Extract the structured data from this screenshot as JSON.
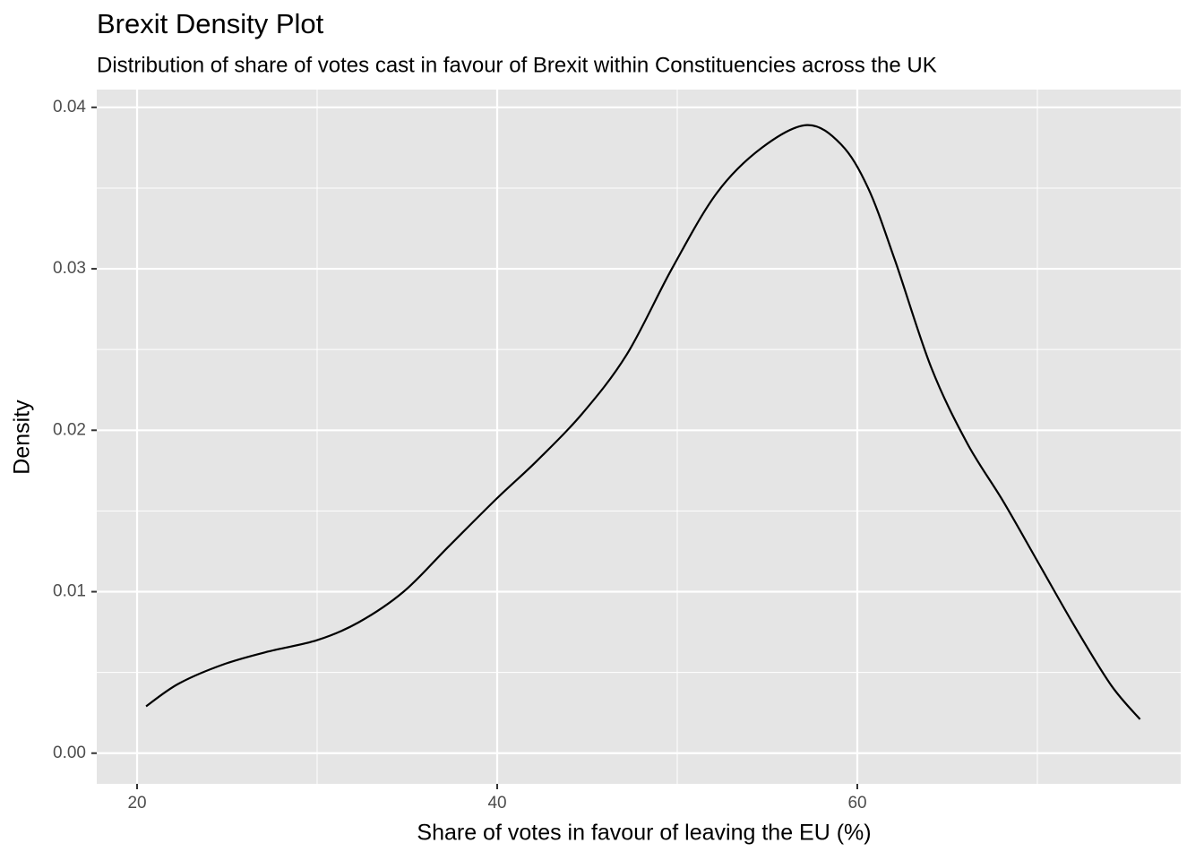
{
  "chart_data": {
    "type": "line",
    "title": "Brexit Density Plot",
    "subtitle": "Distribution of share of votes cast in favour of Brexit within Constituencies across the UK",
    "x_label": "Share of votes in favour of leaving the EU (%)",
    "y_label": "Density",
    "x": [
      20.5,
      22.3,
      24.8,
      27.3,
      30,
      32.3,
      34.8,
      37.3,
      40,
      42.2,
      44.7,
      47.2,
      49.7,
      52.2,
      54.7,
      57.2,
      59.1,
      60.6,
      62.1,
      64.1,
      66.1,
      68.1,
      70.1,
      72.1,
      74.1,
      75.7
    ],
    "series": [
      {
        "color": "#000000",
        "values": [
          0.0029,
          0.0043,
          0.0055,
          0.0063,
          0.007,
          0.0081,
          0.01,
          0.0128,
          0.0158,
          0.0181,
          0.021,
          0.0247,
          0.03,
          0.0347,
          0.0375,
          0.0389,
          0.0377,
          0.035,
          0.0305,
          0.0239,
          0.0192,
          0.0156,
          0.0117,
          0.0078,
          0.0042,
          0.0021
        ]
      }
    ],
    "xlim": [
      17.76,
      77.96
    ],
    "ylim": [
      -0.0019,
      0.0411
    ],
    "xticks": [
      20,
      40,
      60
    ],
    "yticks": [
      {
        "value": 0,
        "label": "0.00"
      },
      {
        "value": 0.01,
        "label": "0.01"
      },
      {
        "value": 0.02,
        "label": "0.02"
      },
      {
        "value": 0.03,
        "label": "0.03"
      },
      {
        "value": 0.04,
        "label": "0.04"
      }
    ],
    "x_minor_ticks": [
      30,
      50,
      70
    ],
    "y_minor_ticks": [
      0.005,
      0.015,
      0.025,
      0.035
    ],
    "grid": true,
    "panel_color": "#e5e5e5"
  }
}
